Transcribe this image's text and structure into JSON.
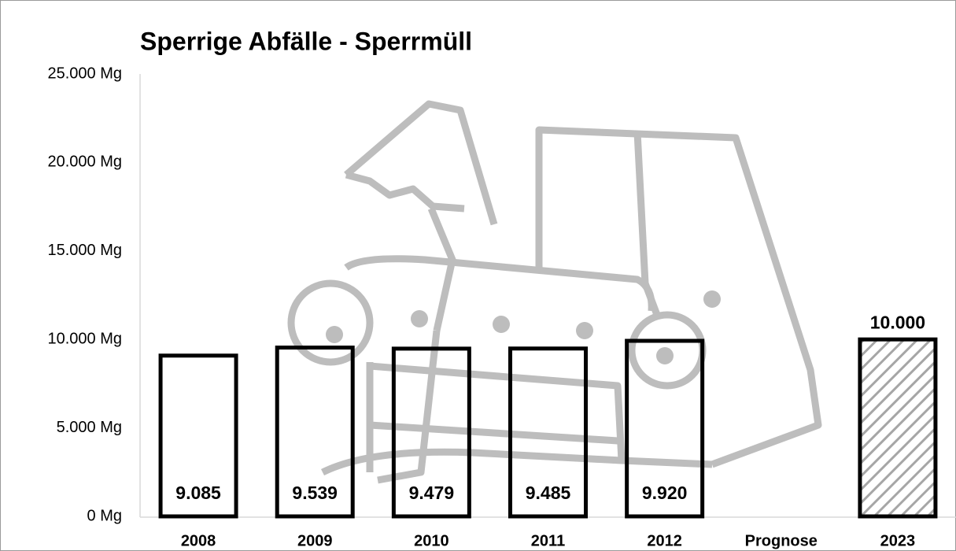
{
  "chart_data": {
    "type": "bar",
    "title": "Sperrige Abfälle - Sperrmüll",
    "categories": [
      "2008",
      "2009",
      "2010",
      "2011",
      "2012",
      "Prognose",
      "2023"
    ],
    "values": [
      9085,
      9539,
      9479,
      9485,
      9920,
      null,
      10000
    ],
    "value_labels": [
      "9.085",
      "9.539",
      "9.479",
      "9.485",
      "9.920",
      null,
      "10.000"
    ],
    "color": "#000000",
    "ylim": [
      0,
      25000
    ],
    "yticks": [
      {
        "value": 0,
        "label": "0 Mg"
      },
      {
        "value": 5000,
        "label": "5.000 Mg"
      },
      {
        "value": 10000,
        "label": "10.000 Mg"
      },
      {
        "value": 15000,
        "label": "15.000 Mg"
      },
      {
        "value": 20000,
        "label": "20.000 Mg"
      },
      {
        "value": 25000,
        "label": "25.000 Mg"
      }
    ],
    "grid": false
  }
}
